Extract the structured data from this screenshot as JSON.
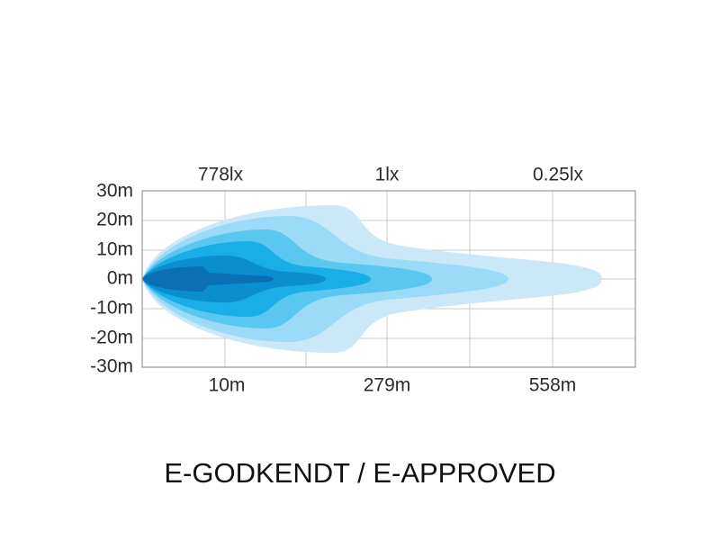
{
  "diagram": {
    "top_labels": [
      "778lx",
      "1lx",
      "0.25lx"
    ],
    "y_labels": [
      "30m",
      "20m",
      "10m",
      "0m",
      "-10m",
      "-20m",
      "-30m"
    ],
    "bottom_labels": [
      "10m",
      "279m",
      "558m"
    ],
    "caption": "E-GODKENDT / E-APPROVED"
  }
}
